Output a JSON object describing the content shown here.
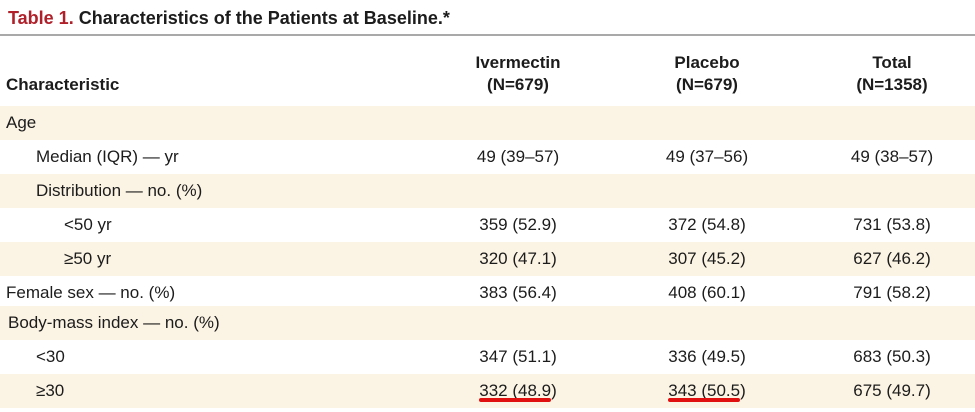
{
  "title": {
    "number": "Table 1.",
    "text": "Characteristics of the Patients at Baseline.*"
  },
  "header": {
    "characteristic": "Characteristic",
    "columns": [
      {
        "name": "Ivermectin",
        "n": "(N=679)"
      },
      {
        "name": "Placebo",
        "n": "(N=679)"
      },
      {
        "name": "Total",
        "n": "(N=1358)"
      }
    ]
  },
  "rows": [
    {
      "label": "Age",
      "values": [
        "",
        "",
        ""
      ]
    },
    {
      "label": "Median (IQR) — yr",
      "values": [
        "49 (39–57)",
        "49 (37–56)",
        "49 (38–57)"
      ]
    },
    {
      "label": "Distribution — no. (%)",
      "values": [
        "",
        "",
        ""
      ]
    },
    {
      "label": "<50 yr",
      "values": [
        "359 (52.9)",
        "372 (54.8)",
        "731 (53.8)"
      ]
    },
    {
      "label": "≥50 yr",
      "values": [
        "320 (47.1)",
        "307 (45.2)",
        "627 (46.2)"
      ]
    },
    {
      "label": "Female sex — no. (%)",
      "values": [
        "383 (56.4)",
        "408 (60.1)",
        "791 (58.2)"
      ]
    },
    {
      "label": "Body-mass index — no. (%)",
      "values": [
        "",
        "",
        ""
      ]
    },
    {
      "label": "<30",
      "values": [
        "347 (51.1)",
        "336 (49.5)",
        "683 (50.3)"
      ]
    },
    {
      "label": "≥30",
      "values": [
        "332 (48.9)",
        "343 (50.5)",
        "675 (49.7)"
      ]
    }
  ],
  "colors": {
    "title_number": "#b0202a",
    "row_shade": "#fbf3e3",
    "annotation_underline": "#e01010"
  }
}
